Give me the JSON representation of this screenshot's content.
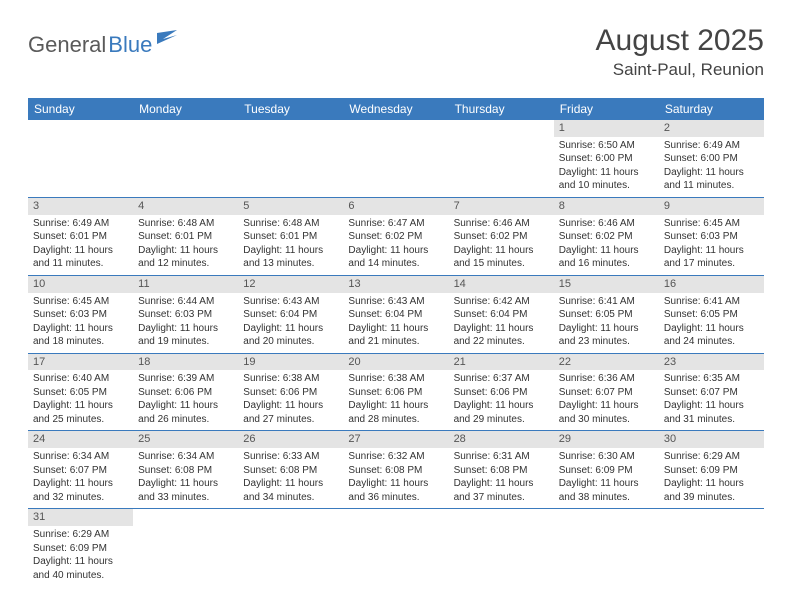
{
  "logo": {
    "part1": "General",
    "part2": "Blue"
  },
  "title": "August 2025",
  "location": "Saint-Paul, Reunion",
  "colors": {
    "header_bg": "#3a7abd",
    "header_text": "#ffffff",
    "daynum_bg": "#e4e4e4",
    "row_border": "#3a7abd"
  },
  "weekdays": [
    "Sunday",
    "Monday",
    "Tuesday",
    "Wednesday",
    "Thursday",
    "Friday",
    "Saturday"
  ],
  "grid": [
    [
      {
        "blank": true
      },
      {
        "blank": true
      },
      {
        "blank": true
      },
      {
        "blank": true
      },
      {
        "blank": true
      },
      {
        "day": "1",
        "sunrise": "Sunrise: 6:50 AM",
        "sunset": "Sunset: 6:00 PM",
        "day1": "Daylight: 11 hours",
        "day2": "and 10 minutes."
      },
      {
        "day": "2",
        "sunrise": "Sunrise: 6:49 AM",
        "sunset": "Sunset: 6:00 PM",
        "day1": "Daylight: 11 hours",
        "day2": "and 11 minutes."
      }
    ],
    [
      {
        "day": "3",
        "sunrise": "Sunrise: 6:49 AM",
        "sunset": "Sunset: 6:01 PM",
        "day1": "Daylight: 11 hours",
        "day2": "and 11 minutes."
      },
      {
        "day": "4",
        "sunrise": "Sunrise: 6:48 AM",
        "sunset": "Sunset: 6:01 PM",
        "day1": "Daylight: 11 hours",
        "day2": "and 12 minutes."
      },
      {
        "day": "5",
        "sunrise": "Sunrise: 6:48 AM",
        "sunset": "Sunset: 6:01 PM",
        "day1": "Daylight: 11 hours",
        "day2": "and 13 minutes."
      },
      {
        "day": "6",
        "sunrise": "Sunrise: 6:47 AM",
        "sunset": "Sunset: 6:02 PM",
        "day1": "Daylight: 11 hours",
        "day2": "and 14 minutes."
      },
      {
        "day": "7",
        "sunrise": "Sunrise: 6:46 AM",
        "sunset": "Sunset: 6:02 PM",
        "day1": "Daylight: 11 hours",
        "day2": "and 15 minutes."
      },
      {
        "day": "8",
        "sunrise": "Sunrise: 6:46 AM",
        "sunset": "Sunset: 6:02 PM",
        "day1": "Daylight: 11 hours",
        "day2": "and 16 minutes."
      },
      {
        "day": "9",
        "sunrise": "Sunrise: 6:45 AM",
        "sunset": "Sunset: 6:03 PM",
        "day1": "Daylight: 11 hours",
        "day2": "and 17 minutes."
      }
    ],
    [
      {
        "day": "10",
        "sunrise": "Sunrise: 6:45 AM",
        "sunset": "Sunset: 6:03 PM",
        "day1": "Daylight: 11 hours",
        "day2": "and 18 minutes."
      },
      {
        "day": "11",
        "sunrise": "Sunrise: 6:44 AM",
        "sunset": "Sunset: 6:03 PM",
        "day1": "Daylight: 11 hours",
        "day2": "and 19 minutes."
      },
      {
        "day": "12",
        "sunrise": "Sunrise: 6:43 AM",
        "sunset": "Sunset: 6:04 PM",
        "day1": "Daylight: 11 hours",
        "day2": "and 20 minutes."
      },
      {
        "day": "13",
        "sunrise": "Sunrise: 6:43 AM",
        "sunset": "Sunset: 6:04 PM",
        "day1": "Daylight: 11 hours",
        "day2": "and 21 minutes."
      },
      {
        "day": "14",
        "sunrise": "Sunrise: 6:42 AM",
        "sunset": "Sunset: 6:04 PM",
        "day1": "Daylight: 11 hours",
        "day2": "and 22 minutes."
      },
      {
        "day": "15",
        "sunrise": "Sunrise: 6:41 AM",
        "sunset": "Sunset: 6:05 PM",
        "day1": "Daylight: 11 hours",
        "day2": "and 23 minutes."
      },
      {
        "day": "16",
        "sunrise": "Sunrise: 6:41 AM",
        "sunset": "Sunset: 6:05 PM",
        "day1": "Daylight: 11 hours",
        "day2": "and 24 minutes."
      }
    ],
    [
      {
        "day": "17",
        "sunrise": "Sunrise: 6:40 AM",
        "sunset": "Sunset: 6:05 PM",
        "day1": "Daylight: 11 hours",
        "day2": "and 25 minutes."
      },
      {
        "day": "18",
        "sunrise": "Sunrise: 6:39 AM",
        "sunset": "Sunset: 6:06 PM",
        "day1": "Daylight: 11 hours",
        "day2": "and 26 minutes."
      },
      {
        "day": "19",
        "sunrise": "Sunrise: 6:38 AM",
        "sunset": "Sunset: 6:06 PM",
        "day1": "Daylight: 11 hours",
        "day2": "and 27 minutes."
      },
      {
        "day": "20",
        "sunrise": "Sunrise: 6:38 AM",
        "sunset": "Sunset: 6:06 PM",
        "day1": "Daylight: 11 hours",
        "day2": "and 28 minutes."
      },
      {
        "day": "21",
        "sunrise": "Sunrise: 6:37 AM",
        "sunset": "Sunset: 6:06 PM",
        "day1": "Daylight: 11 hours",
        "day2": "and 29 minutes."
      },
      {
        "day": "22",
        "sunrise": "Sunrise: 6:36 AM",
        "sunset": "Sunset: 6:07 PM",
        "day1": "Daylight: 11 hours",
        "day2": "and 30 minutes."
      },
      {
        "day": "23",
        "sunrise": "Sunrise: 6:35 AM",
        "sunset": "Sunset: 6:07 PM",
        "day1": "Daylight: 11 hours",
        "day2": "and 31 minutes."
      }
    ],
    [
      {
        "day": "24",
        "sunrise": "Sunrise: 6:34 AM",
        "sunset": "Sunset: 6:07 PM",
        "day1": "Daylight: 11 hours",
        "day2": "and 32 minutes."
      },
      {
        "day": "25",
        "sunrise": "Sunrise: 6:34 AM",
        "sunset": "Sunset: 6:08 PM",
        "day1": "Daylight: 11 hours",
        "day2": "and 33 minutes."
      },
      {
        "day": "26",
        "sunrise": "Sunrise: 6:33 AM",
        "sunset": "Sunset: 6:08 PM",
        "day1": "Daylight: 11 hours",
        "day2": "and 34 minutes."
      },
      {
        "day": "27",
        "sunrise": "Sunrise: 6:32 AM",
        "sunset": "Sunset: 6:08 PM",
        "day1": "Daylight: 11 hours",
        "day2": "and 36 minutes."
      },
      {
        "day": "28",
        "sunrise": "Sunrise: 6:31 AM",
        "sunset": "Sunset: 6:08 PM",
        "day1": "Daylight: 11 hours",
        "day2": "and 37 minutes."
      },
      {
        "day": "29",
        "sunrise": "Sunrise: 6:30 AM",
        "sunset": "Sunset: 6:09 PM",
        "day1": "Daylight: 11 hours",
        "day2": "and 38 minutes."
      },
      {
        "day": "30",
        "sunrise": "Sunrise: 6:29 AM",
        "sunset": "Sunset: 6:09 PM",
        "day1": "Daylight: 11 hours",
        "day2": "and 39 minutes."
      }
    ],
    [
      {
        "day": "31",
        "sunrise": "Sunrise: 6:29 AM",
        "sunset": "Sunset: 6:09 PM",
        "day1": "Daylight: 11 hours",
        "day2": "and 40 minutes."
      },
      {
        "blank": true
      },
      {
        "blank": true
      },
      {
        "blank": true
      },
      {
        "blank": true
      },
      {
        "blank": true
      },
      {
        "blank": true
      }
    ]
  ]
}
